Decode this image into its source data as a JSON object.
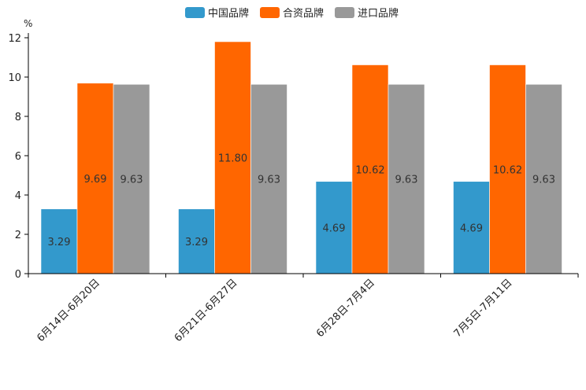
{
  "chart_data": {
    "type": "bar",
    "title": "",
    "xlabel": "",
    "ylabel": "%",
    "ylim": [
      0,
      12
    ],
    "yticks": [
      0,
      2,
      4,
      6,
      8,
      10,
      12
    ],
    "grid": false,
    "legend_position": "top-center",
    "categories": [
      "6月14日-6月20日",
      "6月21日-6月27日",
      "6月28日-7月4日",
      "7月5日-7月11日"
    ],
    "series": [
      {
        "name": "中国品牌",
        "color": "#3399cc",
        "values": [
          3.29,
          3.29,
          4.69,
          4.69
        ],
        "labels": [
          "3.29",
          "3.29",
          "4.69",
          "4.69"
        ]
      },
      {
        "name": "合资品牌",
        "color": "#ff6600",
        "values": [
          9.69,
          11.8,
          10.62,
          10.62
        ],
        "labels": [
          "9.69",
          "11.80",
          "10.62",
          "10.62"
        ]
      },
      {
        "name": "进口品牌",
        "color": "#999999",
        "values": [
          9.63,
          9.63,
          9.63,
          9.63
        ],
        "labels": [
          "9.63",
          "9.63",
          "9.63",
          "9.63"
        ]
      }
    ]
  }
}
